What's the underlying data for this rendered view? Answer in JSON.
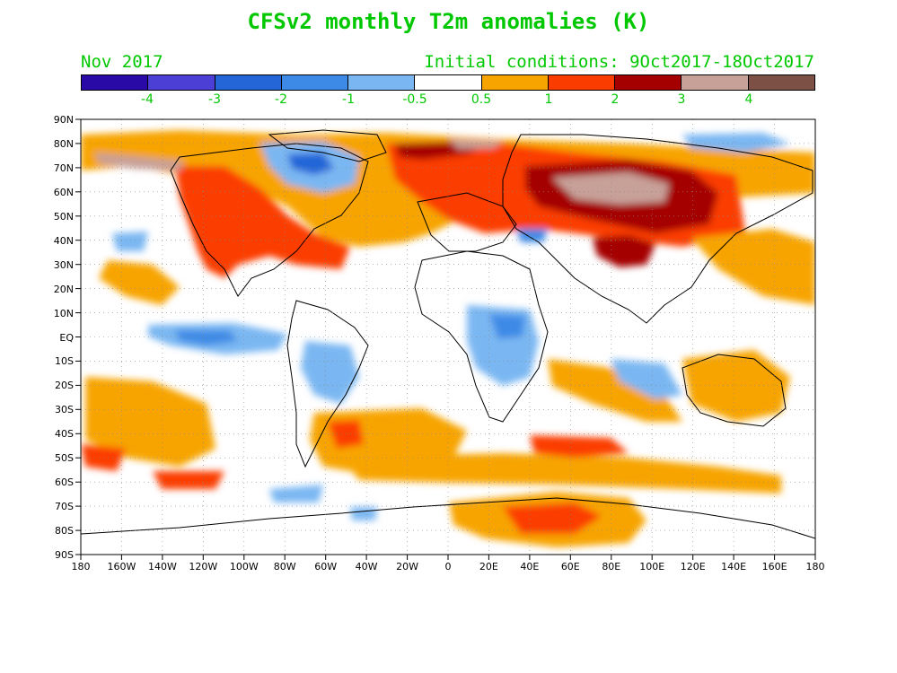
{
  "title": "CFSv2 monthly T2m anomalies (K)",
  "valid_month": "Nov 2017",
  "initial_conditions": "Initial conditions: 9Oct2017-18Oct2017",
  "colorbar": {
    "colors": [
      "#2a0aa6",
      "#4b3fd6",
      "#2466d8",
      "#3d8ae6",
      "#7ab7f2",
      "#ffffff",
      "#f7a400",
      "#fb3c00",
      "#a50000",
      "#c7a098",
      "#7c5044"
    ],
    "labels": [
      "-4",
      "-3",
      "-2",
      "-1",
      "-0.5",
      "0.5",
      "1",
      "2",
      "3",
      "4"
    ]
  },
  "map": {
    "lat_labels": [
      "90N",
      "80N",
      "70N",
      "60N",
      "50N",
      "40N",
      "30N",
      "20N",
      "10N",
      "EQ",
      "10S",
      "20S",
      "30S",
      "40S",
      "50S",
      "60S",
      "70S",
      "80S",
      "90S"
    ],
    "lon_labels": [
      "180",
      "160W",
      "140W",
      "120W",
      "100W",
      "80W",
      "60W",
      "40W",
      "20W",
      "0",
      "20E",
      "40E",
      "60E",
      "80E",
      "100E",
      "120E",
      "140E",
      "160E",
      "180"
    ]
  }
}
